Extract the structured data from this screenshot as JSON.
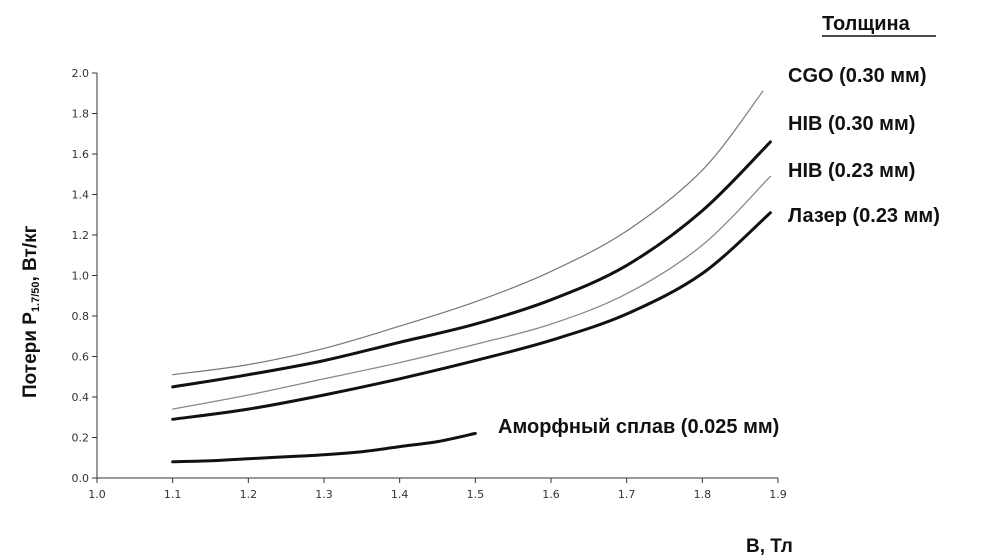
{
  "chart_data": {
    "type": "line",
    "legend_title": "Толщина",
    "xlabel": "B, Тл",
    "ylabel": "Потери P",
    "ylabel_subscript": "1.7/50",
    "ylabel_unit": ", Вт/кг",
    "xlim": [
      1.0,
      1.9
    ],
    "ylim": [
      0.0,
      2.0
    ],
    "x_ticks": [
      "1.0",
      "1.1",
      "1.2",
      "1.3",
      "1.4",
      "1.5",
      "1.6",
      "1.7",
      "1.8",
      "1.9"
    ],
    "y_ticks": [
      "0.0",
      "0.2",
      "0.4",
      "0.6",
      "0.8",
      "1.0",
      "1.2",
      "1.4",
      "1.6",
      "1.8",
      "2.0"
    ],
    "grid": false,
    "series": [
      {
        "name": "CGO (0.30 мм)",
        "color": "#777777",
        "x": [
          1.1,
          1.2,
          1.3,
          1.4,
          1.5,
          1.6,
          1.7,
          1.8,
          1.88
        ],
        "y": [
          0.51,
          0.56,
          0.64,
          0.75,
          0.87,
          1.02,
          1.22,
          1.52,
          1.91
        ]
      },
      {
        "name": "HIB (0.30 мм)",
        "color": "#111111",
        "x": [
          1.1,
          1.2,
          1.3,
          1.4,
          1.5,
          1.6,
          1.7,
          1.8,
          1.89
        ],
        "y": [
          0.45,
          0.51,
          0.58,
          0.67,
          0.76,
          0.88,
          1.05,
          1.32,
          1.66
        ]
      },
      {
        "name": "HIB (0.23 мм)",
        "color": "#888888",
        "x": [
          1.1,
          1.2,
          1.3,
          1.4,
          1.5,
          1.6,
          1.7,
          1.8,
          1.89
        ],
        "y": [
          0.34,
          0.41,
          0.49,
          0.57,
          0.66,
          0.76,
          0.91,
          1.15,
          1.49
        ]
      },
      {
        "name": "Лазер (0.23 мм)",
        "color": "#111111",
        "x": [
          1.1,
          1.2,
          1.3,
          1.4,
          1.5,
          1.6,
          1.7,
          1.8,
          1.89
        ],
        "y": [
          0.29,
          0.34,
          0.41,
          0.49,
          0.58,
          0.68,
          0.81,
          1.01,
          1.31
        ]
      },
      {
        "name": "Аморфный сплав (0.025 мм)",
        "color": "#111111",
        "x": [
          1.1,
          1.15,
          1.2,
          1.25,
          1.3,
          1.35,
          1.4,
          1.45,
          1.5
        ],
        "y": [
          0.08,
          0.085,
          0.095,
          0.105,
          0.115,
          0.13,
          0.155,
          0.18,
          0.22
        ]
      }
    ]
  }
}
